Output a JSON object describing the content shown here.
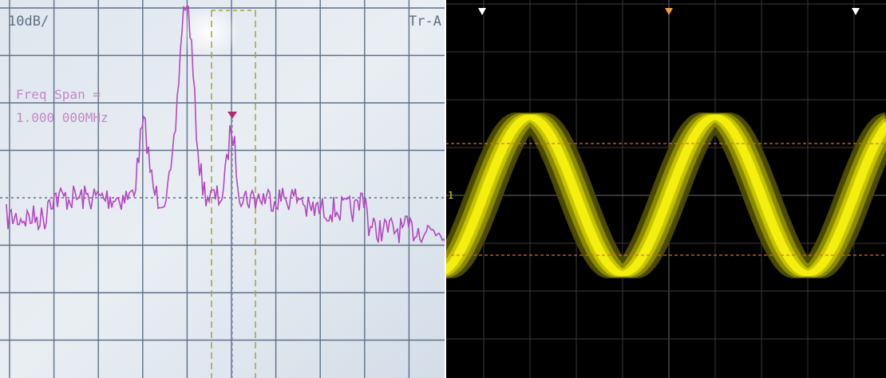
{
  "left_panel": {
    "scale": "10dB/",
    "trace": "Tr-A",
    "span_label": "Freq Span =",
    "span_value": "1.000 000MHz"
  },
  "right_panel": {
    "channel": "1"
  }
}
